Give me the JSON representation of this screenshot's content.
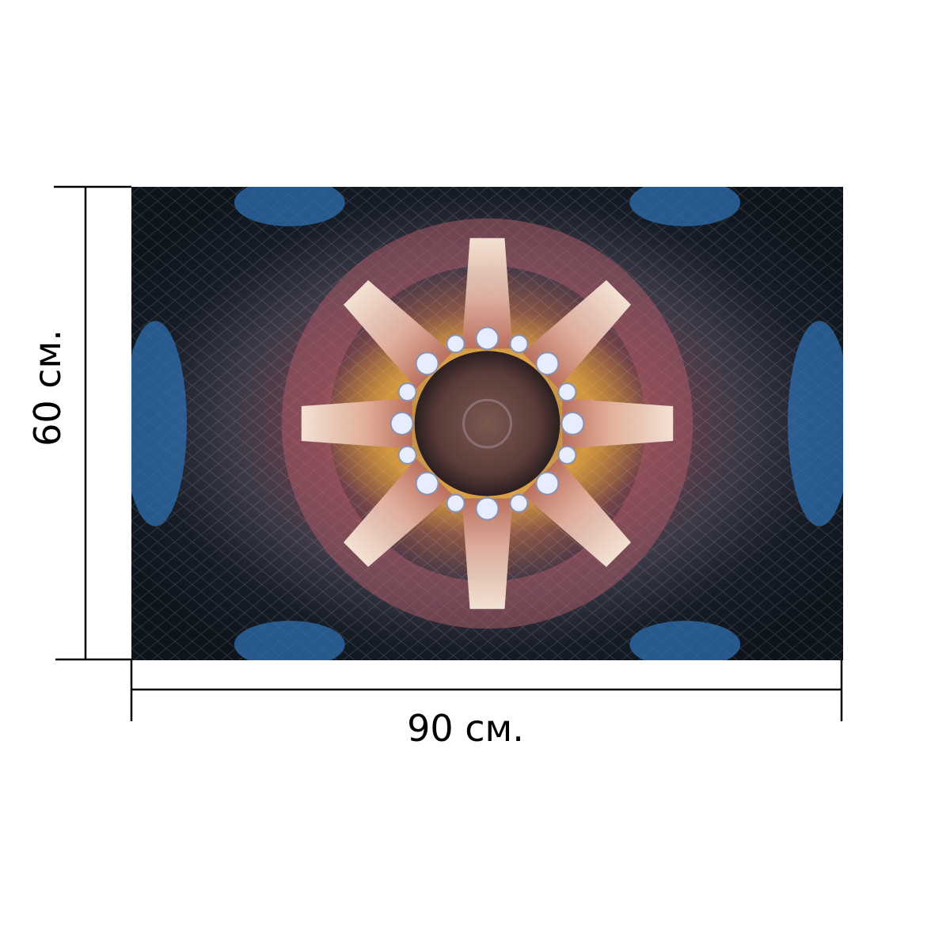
{
  "dimensions": {
    "width_label": "90 см.",
    "height_label": "60 см."
  },
  "artwork": {
    "subject": "kaleidoscope-mandala",
    "colors": {
      "center": "#6b4a44",
      "glow": "#f3c15a",
      "petal": "#e0a8a4",
      "rose": "#a85a64",
      "silver": "#8a8a9a",
      "dark": "#12161e",
      "blue": "#2f6fb0"
    }
  }
}
